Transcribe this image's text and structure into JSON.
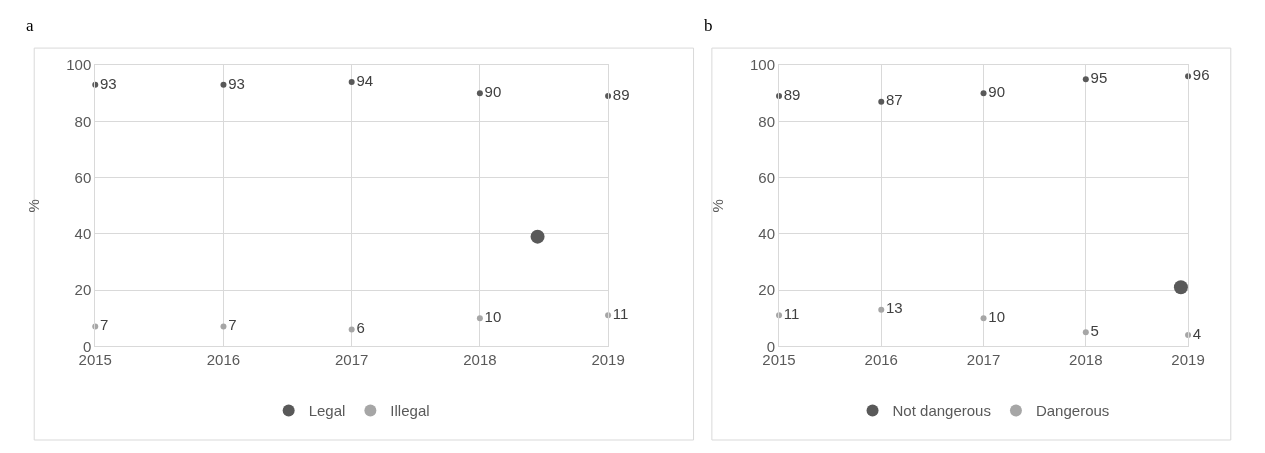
{
  "chart_data": [
    {
      "type": "scatter",
      "title": "a",
      "ylabel": "%",
      "x": [
        2015,
        2016,
        2017,
        2018,
        2019
      ],
      "xlim": [
        2015,
        2019
      ],
      "xticks": [
        2015,
        2016,
        2017,
        2018,
        2019
      ],
      "ylim": [
        0,
        100
      ],
      "yticks": [
        0,
        20,
        40,
        60,
        80,
        100
      ],
      "grid": true,
      "legend": "bottom",
      "marker": "circle",
      "data_labels": true,
      "series": [
        {
          "name": "Legal",
          "color": "#595959",
          "values": [
            93,
            93,
            94,
            90,
            89
          ]
        },
        {
          "name": "Illegal",
          "color": "#a6a6a6",
          "values": [
            7,
            7,
            6,
            10,
            11
          ]
        },
        {
          "color": "#595959",
          "x": [
            2018.45
          ],
          "values": [
            39
          ],
          "value_labels": [
            null
          ],
          "marker": "circle"
        }
      ]
    },
    {
      "type": "scatter",
      "title": "b",
      "ylabel": "%",
      "x": [
        2015,
        2016,
        2017,
        2018,
        2019
      ],
      "xlim": [
        2015,
        2019
      ],
      "xticks": [
        2015,
        2016,
        2017,
        2018,
        2019
      ],
      "ylim": [
        0,
        100
      ],
      "yticks": [
        0,
        20,
        40,
        60,
        80,
        100
      ],
      "grid": true,
      "legend": "bottom",
      "marker": "circle",
      "data_labels": true,
      "series": [
        {
          "name": "Not dangerous",
          "color": "#595959",
          "values": [
            89,
            87,
            90,
            95,
            96
          ]
        },
        {
          "name": "Dangerous",
          "color": "#a6a6a6",
          "values": [
            11,
            13,
            10,
            5,
            4
          ]
        },
        {
          "color": "#595959",
          "x": [
            2018.93
          ],
          "values": [
            21
          ],
          "value_labels": [
            null
          ],
          "marker": "circle"
        }
      ]
    }
  ]
}
